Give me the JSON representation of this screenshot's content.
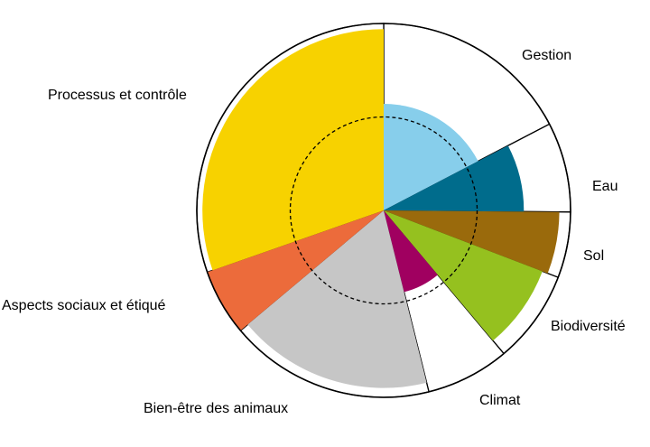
{
  "chart_data": {
    "type": "polar-area",
    "title": "",
    "max_radius": 1.0,
    "reference_circle": 0.5,
    "categories": [
      {
        "label": "Gestion",
        "start_angle": 0,
        "end_angle": 62.5,
        "value": 0.57,
        "color": "#87ceeb"
      },
      {
        "label": "Eau",
        "start_angle": 62.5,
        "end_angle": 90.5,
        "value": 0.75,
        "color": "#006c8c"
      },
      {
        "label": "Sol",
        "start_angle": 90.5,
        "end_angle": 111,
        "value": 0.94,
        "color": "#9a6a0c"
      },
      {
        "label": "Biodiversité",
        "start_angle": 111,
        "end_angle": 140,
        "value": 0.91,
        "color": "#95c11f"
      },
      {
        "label": "Climat",
        "start_angle": 140,
        "end_angle": 166,
        "value": 0.45,
        "color": "#a00060"
      },
      {
        "label": "Bien-être des animaux",
        "start_angle": 166,
        "end_angle": 230,
        "value": 0.95,
        "color": "#c6c6c6"
      },
      {
        "label": "Aspects sociaux et étiqué",
        "start_angle": 230,
        "end_angle": 250.7,
        "value": 1.0,
        "color": "#ec6b3b"
      },
      {
        "label": "Processus et contrôle",
        "start_angle": 250.7,
        "end_angle": 360,
        "value": 0.97,
        "color": "#f7d200"
      }
    ]
  }
}
